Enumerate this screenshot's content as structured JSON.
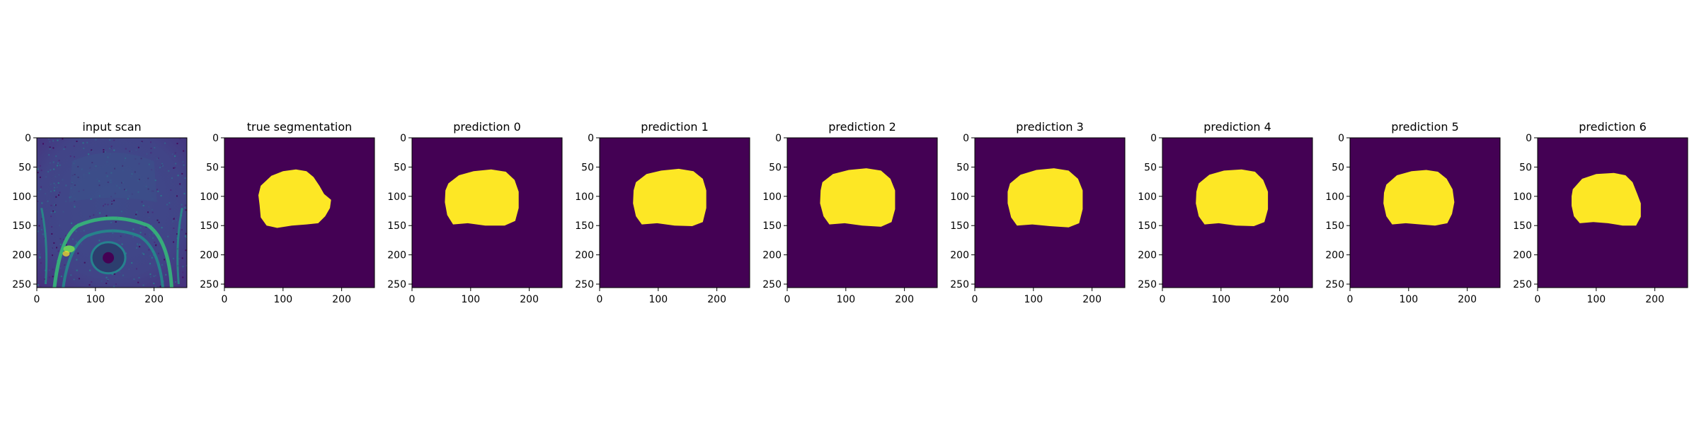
{
  "chart_data": [
    {
      "type": "image",
      "title": "input scan",
      "image": "mri-scan",
      "colormap": "viridis",
      "xlim": [
        0,
        256
      ],
      "ylim": [
        256,
        0
      ],
      "xticks": [
        0,
        100,
        200
      ],
      "yticks": [
        0,
        50,
        100,
        150,
        200,
        250
      ]
    },
    {
      "type": "image",
      "title": "true segmentation",
      "image": "binary-mask",
      "colormap": "viridis",
      "xlim": [
        0,
        256
      ],
      "ylim": [
        256,
        0
      ],
      "xticks": [
        0,
        100,
        200
      ],
      "yticks": [
        0,
        50,
        100,
        150,
        200,
        250
      ],
      "mask_outline": [
        [
          62,
          82
        ],
        [
          80,
          65
        ],
        [
          100,
          57
        ],
        [
          122,
          54
        ],
        [
          140,
          57
        ],
        [
          152,
          67
        ],
        [
          162,
          82
        ],
        [
          170,
          96
        ],
        [
          182,
          106
        ],
        [
          180,
          120
        ],
        [
          172,
          134
        ],
        [
          160,
          146
        ],
        [
          140,
          148
        ],
        [
          115,
          150
        ],
        [
          90,
          154
        ],
        [
          72,
          150
        ],
        [
          62,
          136
        ],
        [
          60,
          115
        ],
        [
          58,
          98
        ]
      ]
    },
    {
      "type": "image",
      "title": "prediction 0",
      "image": "binary-mask",
      "colormap": "viridis",
      "xlim": [
        0,
        256
      ],
      "ylim": [
        256,
        0
      ],
      "xticks": [
        0,
        100,
        200
      ],
      "yticks": [
        0,
        50,
        100,
        150,
        200,
        250
      ],
      "mask_outline": [
        [
          62,
          78
        ],
        [
          80,
          64
        ],
        [
          105,
          57
        ],
        [
          135,
          54
        ],
        [
          160,
          58
        ],
        [
          175,
          72
        ],
        [
          182,
          92
        ],
        [
          182,
          120
        ],
        [
          176,
          142
        ],
        [
          158,
          150
        ],
        [
          125,
          150
        ],
        [
          95,
          146
        ],
        [
          70,
          148
        ],
        [
          60,
          132
        ],
        [
          56,
          110
        ],
        [
          57,
          90
        ]
      ]
    },
    {
      "type": "image",
      "title": "prediction 1",
      "image": "binary-mask",
      "colormap": "viridis",
      "xlim": [
        0,
        256
      ],
      "ylim": [
        256,
        0
      ],
      "xticks": [
        0,
        100,
        200
      ],
      "yticks": [
        0,
        50,
        100,
        150,
        200,
        250
      ],
      "mask_outline": [
        [
          62,
          76
        ],
        [
          80,
          62
        ],
        [
          105,
          56
        ],
        [
          135,
          53
        ],
        [
          160,
          57
        ],
        [
          176,
          70
        ],
        [
          182,
          90
        ],
        [
          182,
          120
        ],
        [
          176,
          144
        ],
        [
          158,
          151
        ],
        [
          128,
          150
        ],
        [
          98,
          146
        ],
        [
          72,
          148
        ],
        [
          62,
          134
        ],
        [
          57,
          112
        ],
        [
          58,
          90
        ]
      ]
    },
    {
      "type": "image",
      "title": "prediction 2",
      "image": "binary-mask",
      "colormap": "viridis",
      "xlim": [
        0,
        256
      ],
      "ylim": [
        256,
        0
      ],
      "xticks": [
        0,
        100,
        200
      ],
      "yticks": [
        0,
        50,
        100,
        150,
        200,
        250
      ],
      "mask_outline": [
        [
          60,
          76
        ],
        [
          78,
          62
        ],
        [
          105,
          55
        ],
        [
          135,
          52
        ],
        [
          160,
          56
        ],
        [
          176,
          70
        ],
        [
          184,
          90
        ],
        [
          184,
          122
        ],
        [
          178,
          144
        ],
        [
          160,
          152
        ],
        [
          128,
          150
        ],
        [
          98,
          146
        ],
        [
          72,
          148
        ],
        [
          62,
          134
        ],
        [
          56,
          112
        ],
        [
          57,
          90
        ]
      ]
    },
    {
      "type": "image",
      "title": "prediction 3",
      "image": "binary-mask",
      "colormap": "viridis",
      "xlim": [
        0,
        256
      ],
      "ylim": [
        256,
        0
      ],
      "xticks": [
        0,
        100,
        200
      ],
      "yticks": [
        0,
        50,
        100,
        150,
        200,
        250
      ],
      "mask_outline": [
        [
          60,
          78
        ],
        [
          78,
          63
        ],
        [
          105,
          55
        ],
        [
          135,
          52
        ],
        [
          160,
          56
        ],
        [
          176,
          70
        ],
        [
          184,
          90
        ],
        [
          184,
          122
        ],
        [
          178,
          146
        ],
        [
          160,
          153
        ],
        [
          128,
          151
        ],
        [
          98,
          148
        ],
        [
          72,
          150
        ],
        [
          62,
          136
        ],
        [
          56,
          112
        ],
        [
          56,
          92
        ]
      ]
    },
    {
      "type": "image",
      "title": "prediction 4",
      "image": "binary-mask",
      "colormap": "viridis",
      "xlim": [
        0,
        256
      ],
      "ylim": [
        256,
        0
      ],
      "xticks": [
        0,
        100,
        200
      ],
      "yticks": [
        0,
        50,
        100,
        150,
        200,
        250
      ],
      "mask_outline": [
        [
          62,
          78
        ],
        [
          80,
          63
        ],
        [
          105,
          56
        ],
        [
          135,
          54
        ],
        [
          158,
          58
        ],
        [
          172,
          72
        ],
        [
          180,
          92
        ],
        [
          180,
          122
        ],
        [
          174,
          144
        ],
        [
          156,
          151
        ],
        [
          126,
          150
        ],
        [
          96,
          146
        ],
        [
          72,
          148
        ],
        [
          62,
          134
        ],
        [
          57,
          112
        ],
        [
          58,
          92
        ]
      ]
    },
    {
      "type": "image",
      "title": "prediction 5",
      "image": "binary-mask",
      "colormap": "viridis",
      "xlim": [
        0,
        256
      ],
      "ylim": [
        256,
        0
      ],
      "xticks": [
        0,
        100,
        200
      ],
      "yticks": [
        0,
        50,
        100,
        150,
        200,
        250
      ],
      "mask_outline": [
        [
          62,
          80
        ],
        [
          80,
          64
        ],
        [
          105,
          57
        ],
        [
          130,
          55
        ],
        [
          150,
          58
        ],
        [
          165,
          70
        ],
        [
          175,
          88
        ],
        [
          178,
          110
        ],
        [
          174,
          130
        ],
        [
          166,
          146
        ],
        [
          145,
          150
        ],
        [
          120,
          148
        ],
        [
          95,
          146
        ],
        [
          72,
          148
        ],
        [
          62,
          134
        ],
        [
          57,
          112
        ],
        [
          58,
          94
        ]
      ]
    },
    {
      "type": "image",
      "title": "prediction 6",
      "image": "binary-mask",
      "colormap": "viridis",
      "xlim": [
        0,
        256
      ],
      "ylim": [
        256,
        0
      ],
      "xticks": [
        0,
        100,
        200
      ],
      "yticks": [
        0,
        50,
        100,
        150,
        200,
        250
      ],
      "mask_outline": [
        [
          60,
          88
        ],
        [
          76,
          70
        ],
        [
          100,
          62
        ],
        [
          130,
          60
        ],
        [
          150,
          64
        ],
        [
          162,
          76
        ],
        [
          170,
          96
        ],
        [
          176,
          112
        ],
        [
          176,
          135
        ],
        [
          168,
          150
        ],
        [
          145,
          150
        ],
        [
          120,
          146
        ],
        [
          95,
          144
        ],
        [
          72,
          146
        ],
        [
          62,
          134
        ],
        [
          58,
          116
        ],
        [
          58,
          100
        ]
      ]
    }
  ],
  "colors": {
    "viridis_low": "#440154",
    "viridis_high": "#fde725",
    "scan_background": "#3b4f8e",
    "scan_bright": "#3fb87c"
  }
}
